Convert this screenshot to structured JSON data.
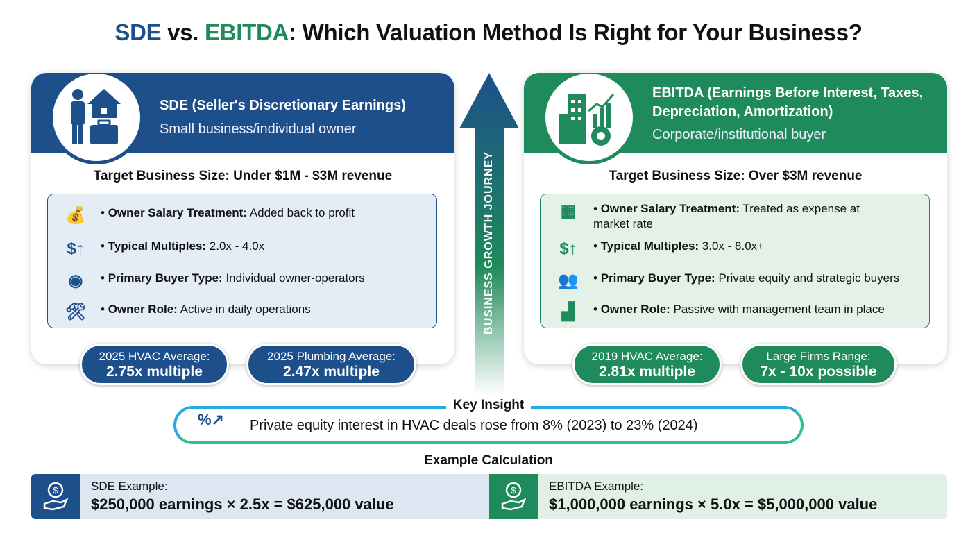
{
  "title": {
    "part1": "SDE",
    "part2": " vs. ",
    "part3": "EBITDA",
    "part4": ": Which Valuation Method Is Right for Your Business?"
  },
  "colors": {
    "sde": "#1d4f8a",
    "ebitda": "#1f8a5b",
    "insight_gradient": [
      "#27a9e1",
      "#2fbf8f"
    ]
  },
  "arrow_label": "BUSINESS GROWTH JOURNEY",
  "sde": {
    "title": "SDE (Seller's Discretionary Earnings)",
    "subtitle": "Small business/individual owner",
    "icon": "person-house-briefcase-icon",
    "target": "Target Business Size: Under $1M - $3M revenue",
    "rows": [
      {
        "icon": "money-bag-plus-icon",
        "label": "Owner Salary Treatment:",
        "value": "Added back to profit"
      },
      {
        "icon": "dollar-up-icon",
        "label": "Typical Multiples:",
        "value": "2.0x - 4.0x"
      },
      {
        "icon": "user-circle-icon",
        "label": "Primary Buyer Type:",
        "value": "Individual owner-operators"
      },
      {
        "icon": "worker-tools-icon",
        "label": "Owner Role:",
        "value": "Active in daily operations"
      }
    ],
    "pills": [
      {
        "label": "2025 HVAC Average:",
        "value": "2.75x multiple"
      },
      {
        "label": "2025 Plumbing Average:",
        "value": "2.47x multiple"
      }
    ]
  },
  "ebitda": {
    "title": "EBITDA (Earnings Before Interest, Taxes, Depreciation, Amortization)",
    "subtitle": "Corporate/institutional buyer",
    "icon": "building-chart-gear-icon",
    "target": "Target Business Size: Over $3M revenue",
    "rows": [
      {
        "icon": "calculator-minus-icon",
        "label": "Owner Salary Treatment:",
        "value": "Treated as expense at market rate"
      },
      {
        "icon": "dollar-up-icon",
        "label": "Typical Multiples:",
        "value": "3.0x - 8.0x+"
      },
      {
        "icon": "group-icon",
        "label": "Primary Buyer Type:",
        "value": "Private equity and strategic buyers"
      },
      {
        "icon": "manager-desk-icon",
        "label": "Owner Role:",
        "value": "Passive with management team in place"
      }
    ],
    "pills": [
      {
        "label": "2019 HVAC Average:",
        "value": "2.81x multiple"
      },
      {
        "label": "Large Firms Range:",
        "value": "7x - 10x possible"
      }
    ]
  },
  "insight": {
    "title": "Key Insight",
    "text": "Private equity interest in HVAC deals rose from 8% (2023) to 23% (2024)",
    "icon": "percent-trend-icon"
  },
  "example": {
    "title": "Example Calculation",
    "sde": {
      "label": "SDE Example:",
      "formula": "$250,000 earnings × 2.5x = $625,000 value"
    },
    "ebitda": {
      "label": "EBITDA Example:",
      "formula": "$1,000,000 earnings × 5.0x = $5,000,000 value"
    }
  }
}
